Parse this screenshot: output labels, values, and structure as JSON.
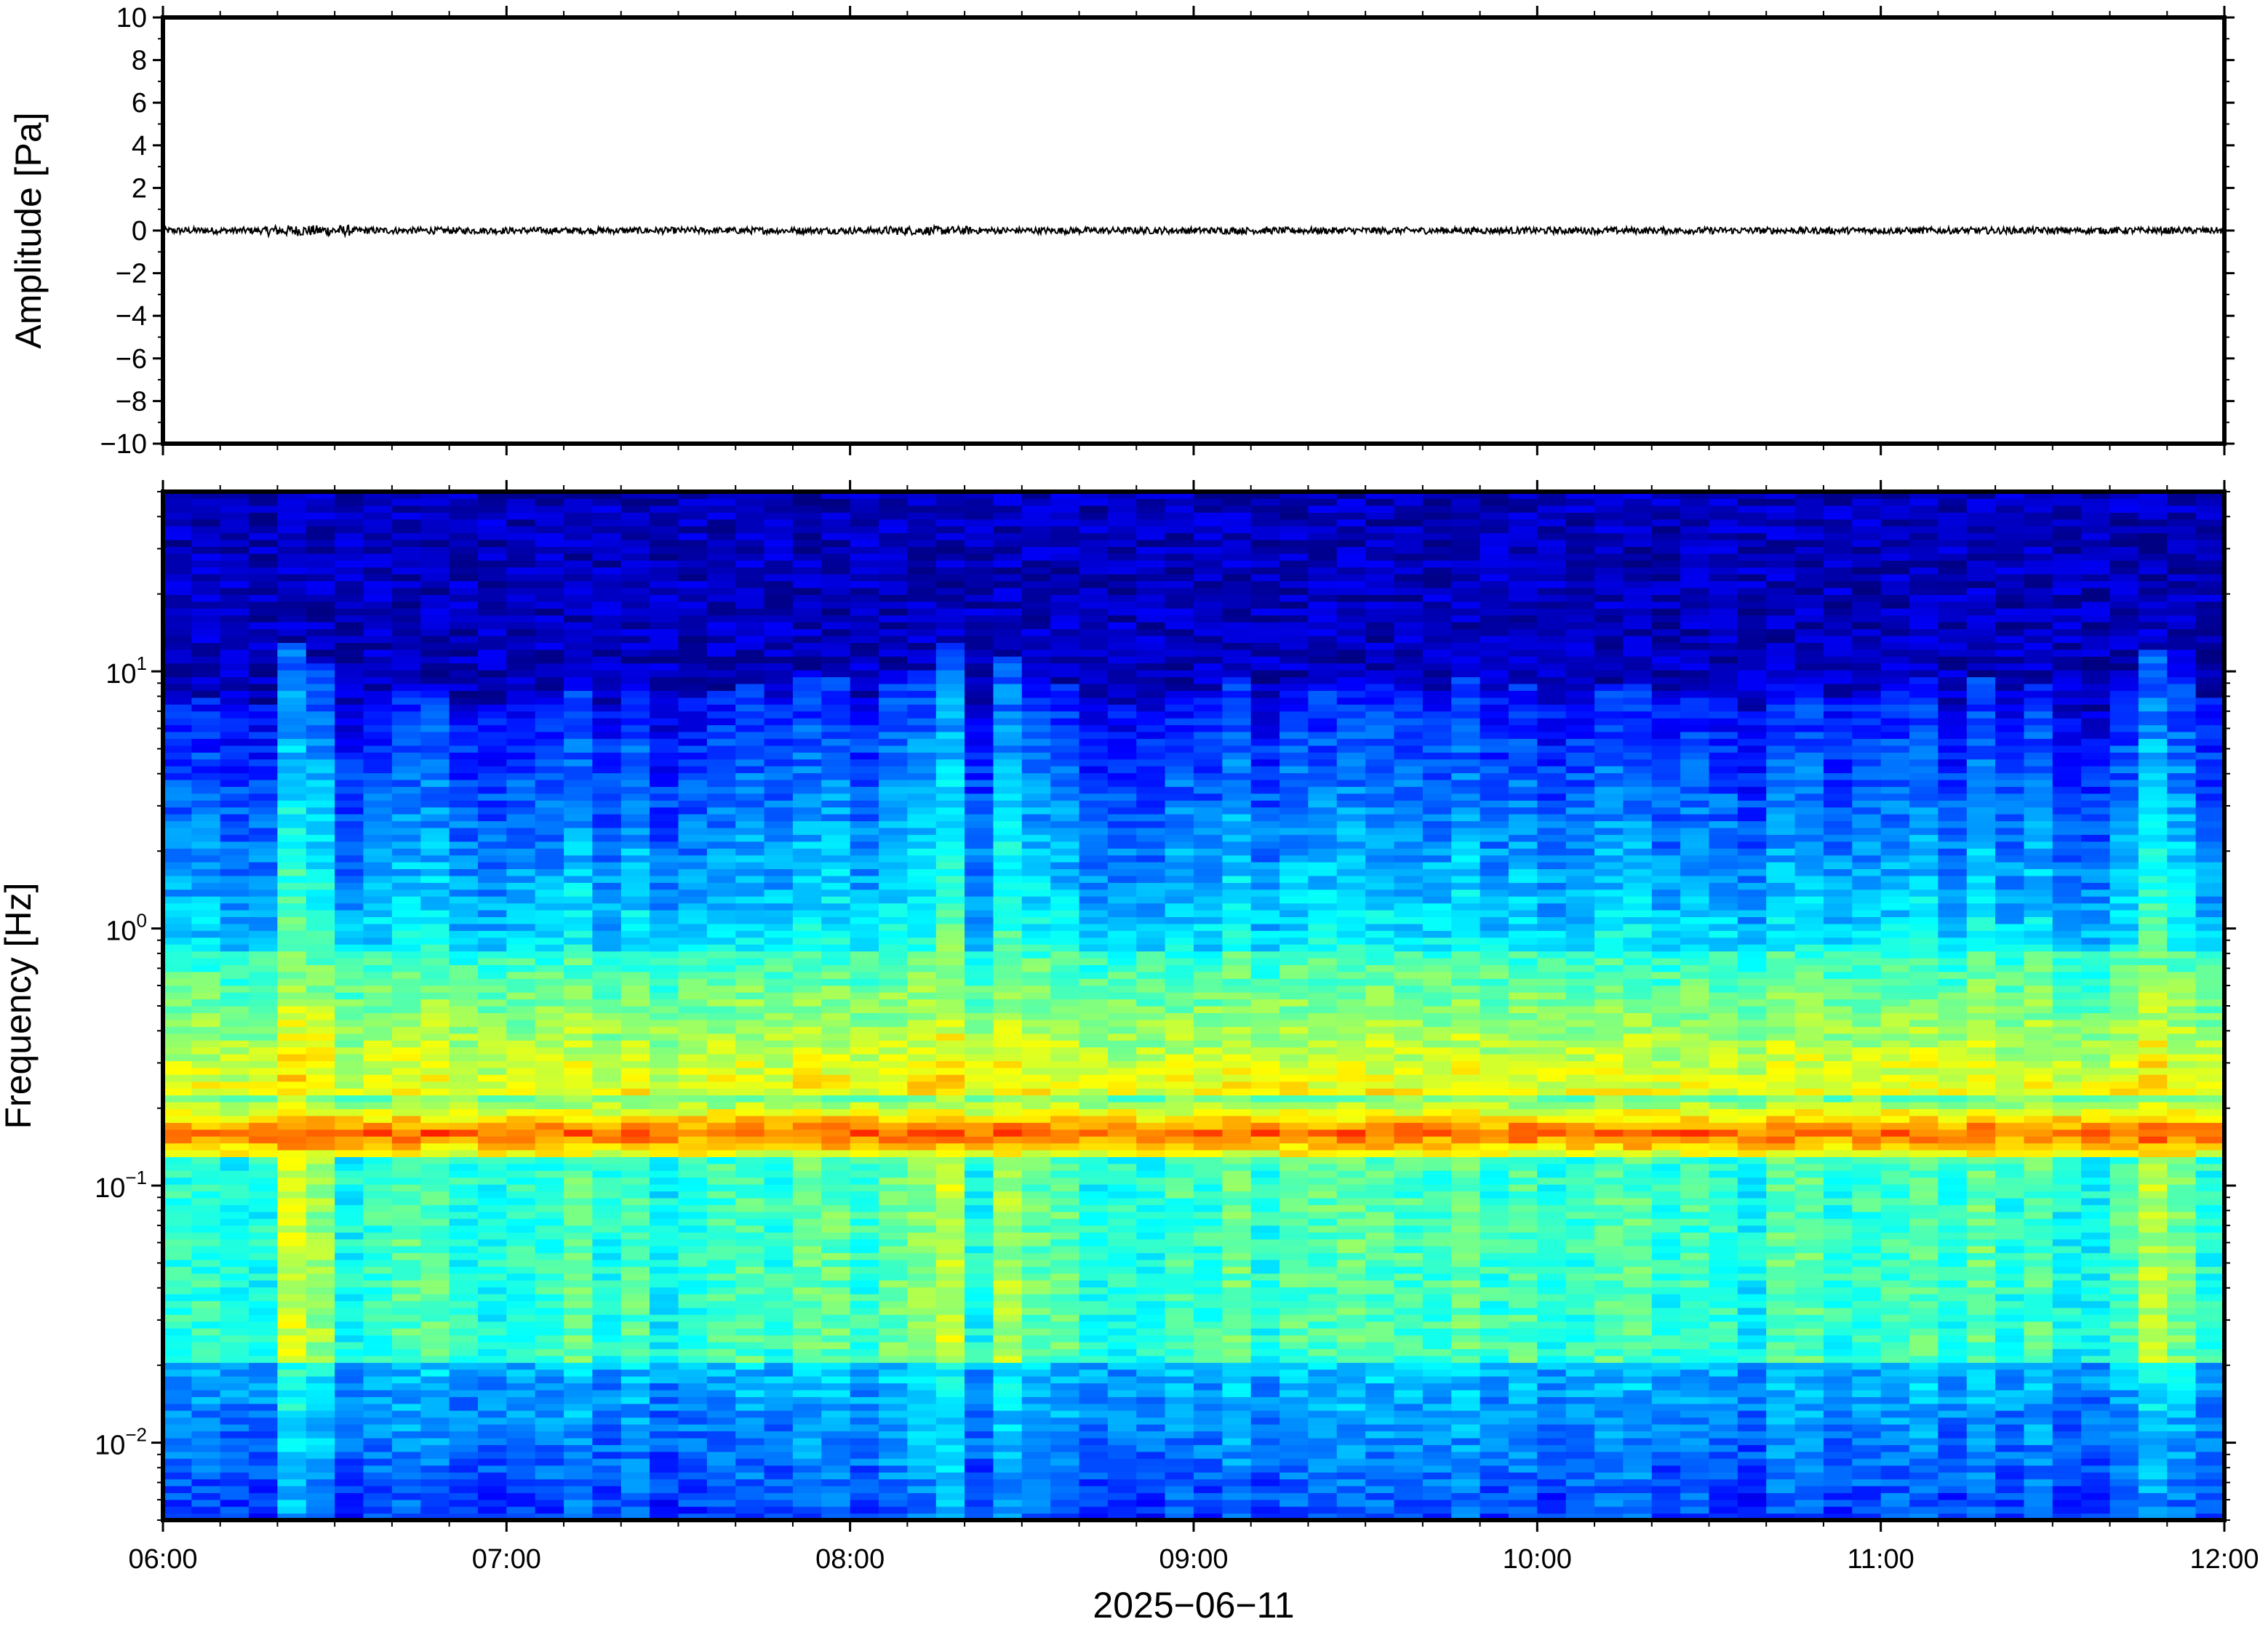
{
  "chart_data": [
    {
      "type": "line",
      "ylabel": "Amplitude [Pa]",
      "ylim": [
        -10,
        10
      ],
      "yticks": [
        10,
        8,
        6,
        4,
        2,
        0,
        -2,
        -4,
        -6,
        -8,
        -10
      ],
      "ytick_labels": [
        "10",
        "8",
        "6",
        "4",
        "2",
        "0",
        "−2",
        "−4",
        "−6",
        "−8",
        "−10"
      ],
      "xlim": [
        "06:00",
        "12:00"
      ],
      "series": [
        {
          "color": "#000000",
          "description": "low-amplitude pressure trace near zero",
          "x_start": "06:00",
          "x_end": "12:00",
          "baseline": 0.0,
          "approx_peak_amplitude": 0.35
        }
      ]
    },
    {
      "type": "heatmap",
      "ylabel": "Frequency [Hz]",
      "xlabel": "2025−06−11",
      "yscale": "log",
      "ylim": [
        0.005,
        50
      ],
      "yticks": [
        10,
        1,
        0.1,
        0.01
      ],
      "ytick_labels": [
        {
          "base": "10",
          "exp": "1"
        },
        {
          "base": "10",
          "exp": "0"
        },
        {
          "base": "10",
          "exp": "−1"
        },
        {
          "base": "10",
          "exp": "−2"
        }
      ],
      "x_tick_labels": [
        "06:00",
        "07:00",
        "08:00",
        "09:00",
        "10:00",
        "11:00",
        "12:00"
      ],
      "x": [
        "06:00",
        "07:00",
        "08:00",
        "09:00",
        "10:00",
        "11:00",
        "12:00"
      ],
      "colormap": "jet",
      "features": {
        "microseism_peak_hz": 0.16,
        "noise_ceiling_hz": 8,
        "bright_columns": [
          "06:25",
          "08:15",
          "08:30",
          "11:50"
        ]
      },
      "time_columns": 72
    }
  ]
}
